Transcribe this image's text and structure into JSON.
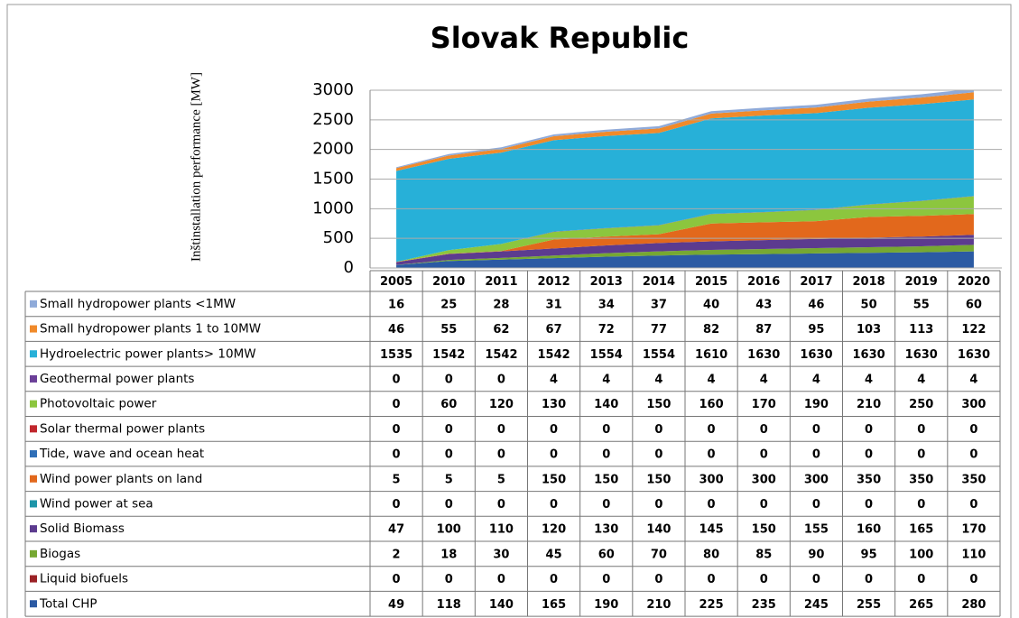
{
  "chart_data": {
    "type": "area",
    "stacked": true,
    "title": "Slovak Republic",
    "ylabel": "Inštinstallation performance [MW]",
    "categories": [
      "2005",
      "2010",
      "2011",
      "2012",
      "2013",
      "2014",
      "2015",
      "2016",
      "2017",
      "2018",
      "2019",
      "2020"
    ],
    "ylim": [
      0,
      3000
    ],
    "yticks": [
      0,
      500,
      1000,
      1500,
      2000,
      2500,
      3000
    ],
    "grid": true,
    "series": [
      {
        "name": "Small hydropower plants <1MW",
        "color": "#8faad9",
        "values": [
          16,
          25,
          28,
          31,
          34,
          37,
          40,
          43,
          46,
          50,
          55,
          60
        ]
      },
      {
        "name": "Small hydropower plants 1 to 10MW",
        "color": "#f08a2a",
        "values": [
          46,
          55,
          62,
          67,
          72,
          77,
          82,
          87,
          95,
          103,
          113,
          122
        ]
      },
      {
        "name": "Hydroelectric power plants> 10MW",
        "color": "#27b0d8",
        "values": [
          1535,
          1542,
          1542,
          1542,
          1554,
          1554,
          1610,
          1630,
          1630,
          1630,
          1630,
          1630
        ]
      },
      {
        "name": "Geothermal power plants",
        "color": "#6b3f98",
        "values": [
          0,
          0,
          0,
          4,
          4,
          4,
          4,
          4,
          4,
          4,
          4,
          4
        ]
      },
      {
        "name": "Photovoltaic power",
        "color": "#8cc63e",
        "values": [
          0,
          60,
          120,
          130,
          140,
          150,
          160,
          170,
          190,
          210,
          250,
          300
        ]
      },
      {
        "name": "Solar thermal power plants",
        "color": "#c1272d",
        "values": [
          0,
          0,
          0,
          0,
          0,
          0,
          0,
          0,
          0,
          0,
          0,
          0
        ]
      },
      {
        "name": "Tide, wave and ocean heat",
        "color": "#2f6fb7",
        "values": [
          0,
          0,
          0,
          0,
          0,
          0,
          0,
          0,
          0,
          0,
          0,
          0
        ]
      },
      {
        "name": "Wind power plants on land",
        "color": "#e2681c",
        "values": [
          5,
          5,
          5,
          150,
          150,
          150,
          300,
          300,
          300,
          350,
          350,
          350
        ]
      },
      {
        "name": "Wind power at sea",
        "color": "#1d95a8",
        "values": [
          0,
          0,
          0,
          0,
          0,
          0,
          0,
          0,
          0,
          0,
          0,
          0
        ]
      },
      {
        "name": "Solid Biomass",
        "color": "#5c3b8f",
        "values": [
          47,
          100,
          110,
          120,
          130,
          140,
          145,
          150,
          155,
          160,
          165,
          170
        ]
      },
      {
        "name": "Biogas",
        "color": "#76a832",
        "values": [
          2,
          18,
          30,
          45,
          60,
          70,
          80,
          85,
          90,
          95,
          100,
          110
        ]
      },
      {
        "name": "Liquid biofuels",
        "color": "#9b2226",
        "values": [
          0,
          0,
          0,
          0,
          0,
          0,
          0,
          0,
          0,
          0,
          0,
          0
        ]
      },
      {
        "name": "Total CHP",
        "color": "#2b5aa3",
        "values": [
          49,
          118,
          140,
          165,
          190,
          210,
          225,
          235,
          245,
          255,
          265,
          280
        ]
      }
    ]
  }
}
